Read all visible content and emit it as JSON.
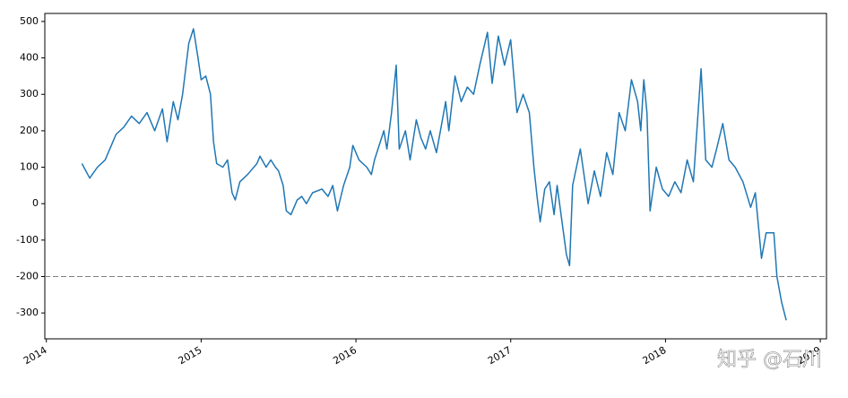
{
  "chart_data": {
    "type": "line",
    "x": [
      2014.23,
      2014.28,
      2014.33,
      2014.38,
      2014.45,
      2014.5,
      2014.55,
      2014.6,
      2014.65,
      2014.7,
      2014.75,
      2014.78,
      2014.82,
      2014.85,
      2014.88,
      2014.92,
      2014.95,
      2014.98,
      2015.0,
      2015.03,
      2015.06,
      2015.08,
      2015.1,
      2015.14,
      2015.17,
      2015.2,
      2015.22,
      2015.25,
      2015.3,
      2015.36,
      2015.38,
      2015.42,
      2015.45,
      2015.48,
      2015.5,
      2015.53,
      2015.55,
      2015.58,
      2015.62,
      2015.65,
      2015.68,
      2015.72,
      2015.78,
      2015.82,
      2015.85,
      2015.88,
      2015.92,
      2015.96,
      2015.98,
      2016.02,
      2016.07,
      2016.1,
      2016.12,
      2016.18,
      2016.2,
      2016.23,
      2016.26,
      2016.28,
      2016.32,
      2016.35,
      2016.39,
      2016.42,
      2016.45,
      2016.48,
      2016.52,
      2016.58,
      2016.6,
      2016.64,
      2016.68,
      2016.72,
      2016.76,
      2016.8,
      2016.85,
      2016.88,
      2016.92,
      2016.96,
      2017.0,
      2017.04,
      2017.08,
      2017.12,
      2017.15,
      2017.17,
      2017.19,
      2017.22,
      2017.25,
      2017.28,
      2017.3,
      2017.36,
      2017.38,
      2017.4,
      2017.45,
      2017.5,
      2017.54,
      2017.58,
      2017.62,
      2017.66,
      2017.7,
      2017.74,
      2017.78,
      2017.82,
      2017.84,
      2017.86,
      2017.88,
      2017.9,
      2017.94,
      2017.98,
      2018.02,
      2018.06,
      2018.1,
      2018.14,
      2018.18,
      2018.23,
      2018.26,
      2018.3,
      2018.33,
      2018.37,
      2018.41,
      2018.45,
      2018.5,
      2018.55,
      2018.58,
      2018.62,
      2018.65,
      2018.7,
      2018.72,
      2018.75,
      2018.78
    ],
    "series": [
      {
        "color": "#1f77b4",
        "values": [
          110,
          70,
          100,
          120,
          190,
          210,
          240,
          220,
          250,
          200,
          260,
          170,
          280,
          230,
          300,
          440,
          480,
          400,
          340,
          350,
          300,
          170,
          110,
          100,
          120,
          30,
          10,
          60,
          80,
          110,
          130,
          100,
          120,
          100,
          90,
          50,
          -20,
          -30,
          10,
          20,
          0,
          30,
          40,
          20,
          50,
          -20,
          50,
          100,
          160,
          120,
          100,
          80,
          120,
          200,
          150,
          250,
          380,
          150,
          200,
          120,
          230,
          180,
          150,
          200,
          140,
          280,
          200,
          350,
          280,
          320,
          300,
          380,
          470,
          330,
          460,
          380,
          450,
          250,
          300,
          250,
          100,
          20,
          -50,
          40,
          60,
          -30,
          50,
          -140,
          -170,
          50,
          150,
          0,
          90,
          20,
          140,
          80,
          250,
          200,
          340,
          280,
          200,
          340,
          250,
          -20,
          100,
          40,
          20,
          60,
          30,
          120,
          60,
          370,
          120,
          100,
          150,
          220,
          120,
          100,
          60,
          -10,
          30,
          -150,
          -80,
          -80,
          -200,
          -270,
          -320
        ]
      }
    ],
    "xlim": [
      2013.99,
      2019.04
    ],
    "xticks": [
      2014,
      2015,
      2016,
      2017,
      2018,
      2019
    ],
    "ylim": [
      -371,
      522
    ],
    "yticks": [
      -300,
      -200,
      -100,
      0,
      100,
      200,
      300,
      400,
      500
    ],
    "hline": -200,
    "hline_color": "#808080",
    "watermark": "知乎 @石川"
  }
}
